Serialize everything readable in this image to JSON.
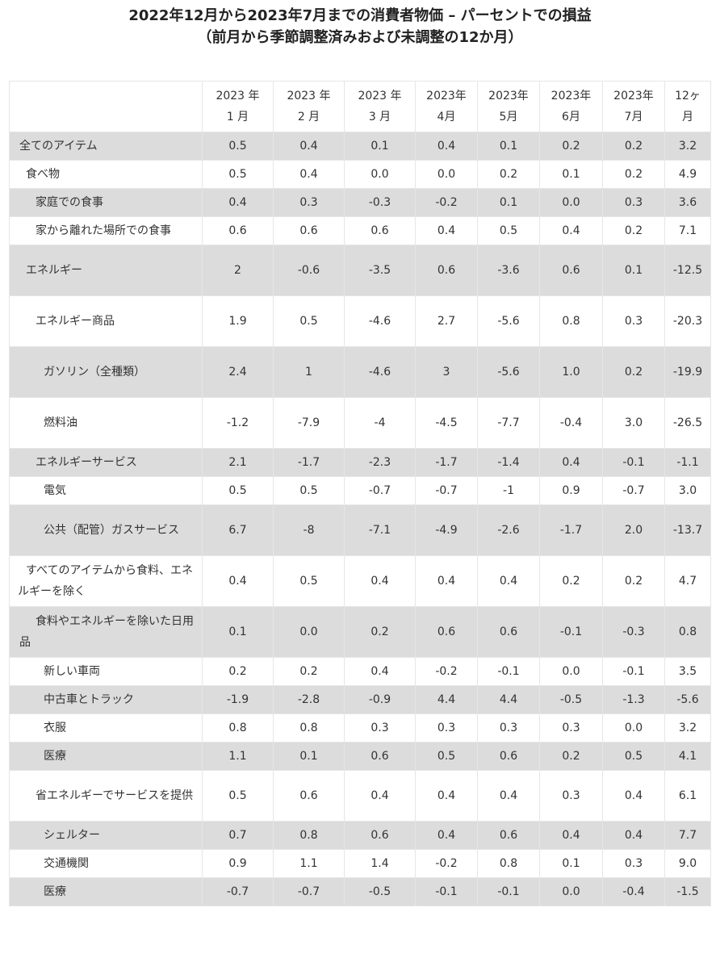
{
  "title": {
    "line1": "2022年12月から2023年7月までの消費者物価 – パーセントでの損益",
    "line2": "（前月から季節調整済みおよび未調整の12か月）"
  },
  "table": {
    "headers": [
      "",
      "2023 年\n1 月",
      "2023 年\n2 月",
      "2023 年\n3 月",
      "2023年\n4月",
      "2023年\n5月",
      "2023年\n6月",
      "2023年\n7月",
      "12ヶ\n月"
    ],
    "rows": [
      {
        "label": "全てのアイテム",
        "indent": 0,
        "values": [
          "0.5",
          "0.4",
          "0.1",
          "0.4",
          "0.1",
          "0.2",
          "0.2",
          "3.2"
        ]
      },
      {
        "label": "食べ物",
        "indent": 1,
        "values": [
          "0.5",
          "0.4",
          "0.0",
          "0.0",
          "0.2",
          "0.1",
          "0.2",
          "4.9"
        ]
      },
      {
        "label": "家庭での食事",
        "indent": 2,
        "values": [
          "0.4",
          "0.3",
          "-0.3",
          "-0.2",
          "0.1",
          "0.0",
          "0.3",
          "3.6"
        ]
      },
      {
        "label": "家から離れた場所での食事",
        "indent": 2,
        "values": [
          "0.6",
          "0.6",
          "0.6",
          "0.4",
          "0.5",
          "0.4",
          "0.2",
          "7.1"
        ]
      },
      {
        "label": "エネルギー",
        "indent": 1,
        "values": [
          "2",
          "-0.6",
          "-3.5",
          "0.6",
          "-3.6",
          "0.6",
          "0.1",
          "-12.5"
        ]
      },
      {
        "label": "エネルギー商品",
        "indent": 2,
        "values": [
          "1.9",
          "0.5",
          "-4.6",
          "2.7",
          "-5.6",
          "0.8",
          "0.3",
          "-20.3"
        ]
      },
      {
        "label": "ガソリン（全種類）",
        "indent": 3,
        "values": [
          "2.4",
          "1",
          "-4.6",
          "3",
          "-5.6",
          "1.0",
          "0.2",
          "-19.9"
        ]
      },
      {
        "label": "燃料油",
        "indent": 3,
        "values": [
          "-1.2",
          "-7.9",
          "-4",
          "-4.5",
          "-7.7",
          "-0.4",
          "3.0",
          "-26.5"
        ]
      },
      {
        "label": "エネルギーサービス",
        "indent": 2,
        "values": [
          "2.1",
          "-1.7",
          "-2.3",
          "-1.7",
          "-1.4",
          "0.4",
          "-0.1",
          "-1.1"
        ]
      },
      {
        "label": "電気",
        "indent": 3,
        "values": [
          "0.5",
          "0.5",
          "-0.7",
          "-0.7",
          "-1",
          "0.9",
          "-0.7",
          "3.0"
        ]
      },
      {
        "label": "公共（配管）ガスサービス",
        "indent": 3,
        "values": [
          "6.7",
          "-8",
          "-7.1",
          "-4.9",
          "-2.6",
          "-1.7",
          "2.0",
          "-13.7"
        ]
      },
      {
        "label": "すべてのアイテムから食料、エネルギーを除く",
        "indent": 1,
        "values": [
          "0.4",
          "0.5",
          "0.4",
          "0.4",
          "0.4",
          "0.2",
          "0.2",
          "4.7"
        ]
      },
      {
        "label": "食料やエネルギーを除いた日用品",
        "indent": 2,
        "values": [
          "0.1",
          "0.0",
          "0.2",
          "0.6",
          "0.6",
          "-0.1",
          "-0.3",
          "0.8"
        ]
      },
      {
        "label": "新しい車両",
        "indent": 3,
        "values": [
          "0.2",
          "0.2",
          "0.4",
          "-0.2",
          "-0.1",
          "0.0",
          "-0.1",
          "3.5"
        ]
      },
      {
        "label": "中古車とトラック",
        "indent": 3,
        "values": [
          "-1.9",
          "-2.8",
          "-0.9",
          "4.4",
          "4.4",
          "-0.5",
          "-1.3",
          "-5.6"
        ]
      },
      {
        "label": "衣服",
        "indent": 3,
        "values": [
          "0.8",
          "0.8",
          "0.3",
          "0.3",
          "0.3",
          "0.3",
          "0.0",
          "3.2"
        ]
      },
      {
        "label": "医療",
        "indent": 3,
        "values": [
          "1.1",
          "0.1",
          "0.6",
          "0.5",
          "0.6",
          "0.2",
          "0.5",
          "4.1"
        ]
      },
      {
        "label": "省エネルギーでサービスを提供",
        "indent": 2,
        "values": [
          "0.5",
          "0.6",
          "0.4",
          "0.4",
          "0.4",
          "0.3",
          "0.4",
          "6.1"
        ]
      },
      {
        "label": "シェルター",
        "indent": 3,
        "values": [
          "0.7",
          "0.8",
          "0.6",
          "0.4",
          "0.6",
          "0.4",
          "0.4",
          "7.7"
        ]
      },
      {
        "label": "交通機関",
        "indent": 3,
        "values": [
          "0.9",
          "1.1",
          "1.4",
          "-0.2",
          "0.8",
          "0.1",
          "0.3",
          "9.0"
        ]
      },
      {
        "label": "医療",
        "indent": 3,
        "values": [
          "-0.7",
          "-0.7",
          "-0.5",
          "-0.1",
          "-0.1",
          "0.0",
          "-0.4",
          "-1.5"
        ]
      }
    ]
  }
}
